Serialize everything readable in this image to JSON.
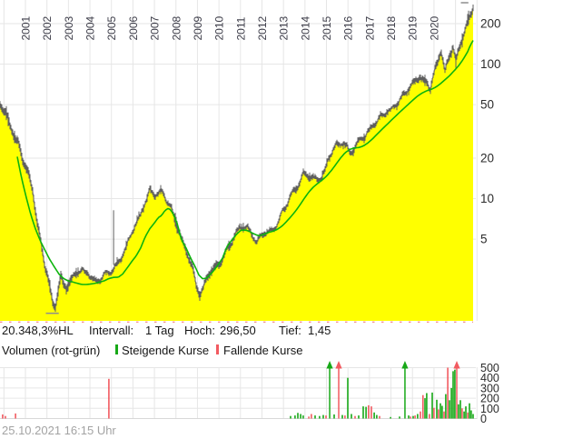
{
  "header": {
    "years": [
      "2001",
      "2002",
      "2003",
      "2004",
      "2005",
      "2006",
      "2007",
      "2008",
      "2009",
      "2010",
      "2011",
      "2012",
      "2013",
      "2014",
      "2015",
      "2016",
      "2017",
      "2018",
      "2019",
      "2020"
    ]
  },
  "stats": {
    "change": "20.348,3%HL",
    "interval_label": "Intervall:",
    "interval_value": "1 Tag",
    "high_label": "Hoch:",
    "high_value": "296,50",
    "low_label": "Tief:",
    "low_value": "1,45"
  },
  "legend": {
    "volume_label": "Volumen (rot-grün)",
    "rising_label": "Steigende Kurse",
    "falling_label": "Fallende Kurse"
  },
  "timestamp": "25.10.2021 16:15 Uhr",
  "colors": {
    "area_fill": "#ffff00",
    "price_line": "#5f5f5f",
    "ma_line": "#0db40d",
    "volume_up": "#17a817",
    "volume_down": "#f25a60",
    "grid": "#e6e6e6",
    "axis_text": "#2b2b2b",
    "year_text": "#3c3c48",
    "bottom_dash": "#ef6a6a",
    "marker_tick": "#8e8e8e"
  },
  "chart_data": {
    "type": "line",
    "subtype": "daily price area chart with moving average and volume pane",
    "y_scale": "log",
    "title": "",
    "xlabel": "",
    "ylabel": "",
    "x_range_years": [
      1999.8,
      2021.85
    ],
    "y_ticks": [
      200,
      100,
      50,
      20,
      10,
      5
    ],
    "price_series": {
      "name": "Kurs",
      "points": [
        [
          1999.82,
          52
        ],
        [
          1999.99,
          45
        ],
        [
          2000.16,
          39
        ],
        [
          2000.32,
          33
        ],
        [
          2000.49,
          28.5
        ],
        [
          2000.66,
          26
        ],
        [
          2000.83,
          21
        ],
        [
          2001.0,
          17.5
        ],
        [
          2001.17,
          14.5
        ],
        [
          2001.34,
          11
        ],
        [
          2001.51,
          6.8
        ],
        [
          2001.68,
          4.8
        ],
        [
          2001.84,
          3.6
        ],
        [
          2002.01,
          2.8
        ],
        [
          2002.14,
          2.1
        ],
        [
          2002.27,
          1.6
        ],
        [
          2002.39,
          1.5
        ],
        [
          2002.52,
          2.0
        ],
        [
          2002.65,
          2.5
        ],
        [
          2002.77,
          2.2
        ],
        [
          2002.9,
          2.1
        ],
        [
          2003.03,
          2.4
        ],
        [
          2003.2,
          2.6
        ],
        [
          2003.41,
          2.95
        ],
        [
          2003.62,
          2.9
        ],
        [
          2003.79,
          2.7
        ],
        [
          2003.96,
          2.75
        ],
        [
          2004.17,
          2.5
        ],
        [
          2004.38,
          2.5
        ],
        [
          2004.59,
          2.65
        ],
        [
          2004.8,
          2.7
        ],
        [
          2004.97,
          2.75
        ],
        [
          2005.18,
          3.1
        ],
        [
          2005.39,
          3.5
        ],
        [
          2005.6,
          4.2
        ],
        [
          2005.77,
          4.7
        ],
        [
          2005.94,
          5.4
        ],
        [
          2006.15,
          6.3
        ],
        [
          2006.36,
          7.5
        ],
        [
          2006.57,
          9.5
        ],
        [
          2006.79,
          11.8
        ],
        [
          2006.91,
          11.2
        ],
        [
          2007.08,
          10.5
        ],
        [
          2007.25,
          11.0
        ],
        [
          2007.42,
          10.6
        ],
        [
          2007.59,
          9.6
        ],
        [
          2007.76,
          8.8
        ],
        [
          2007.93,
          7.2
        ],
        [
          2008.09,
          6.0
        ],
        [
          2008.26,
          4.8
        ],
        [
          2008.43,
          4.2
        ],
        [
          2008.6,
          3.6
        ],
        [
          2008.77,
          3.1
        ],
        [
          2008.94,
          2.4
        ],
        [
          2009.11,
          2.0
        ],
        [
          2009.28,
          2.2
        ],
        [
          2009.45,
          2.6
        ],
        [
          2009.61,
          2.9
        ],
        [
          2009.78,
          3.1
        ],
        [
          2009.95,
          3.3
        ],
        [
          2010.12,
          3.6
        ],
        [
          2010.29,
          4.0
        ],
        [
          2010.46,
          4.4
        ],
        [
          2010.63,
          4.9
        ],
        [
          2010.8,
          5.4
        ],
        [
          2010.97,
          6.0
        ],
        [
          2011.14,
          6.3
        ],
        [
          2011.3,
          6.1
        ],
        [
          2011.47,
          5.6
        ],
        [
          2011.64,
          5.0
        ],
        [
          2011.77,
          4.6
        ],
        [
          2011.9,
          5.1
        ],
        [
          2012.06,
          5.5
        ],
        [
          2012.23,
          5.7
        ],
        [
          2012.4,
          5.8
        ],
        [
          2012.57,
          6.1
        ],
        [
          2012.74,
          6.5
        ],
        [
          2012.91,
          7.3
        ],
        [
          2013.08,
          8.4
        ],
        [
          2013.25,
          9.8
        ],
        [
          2013.42,
          11.4
        ],
        [
          2013.58,
          12.0
        ],
        [
          2013.75,
          12.8
        ],
        [
          2013.92,
          15.0
        ],
        [
          2014.09,
          14.6
        ],
        [
          2014.26,
          14.1
        ],
        [
          2014.43,
          13.9
        ],
        [
          2014.6,
          14.2
        ],
        [
          2014.77,
          14.6
        ],
        [
          2014.94,
          16.3
        ],
        [
          2015.1,
          19.2
        ],
        [
          2015.27,
          22.0
        ],
        [
          2015.44,
          23.8
        ],
        [
          2015.61,
          25.0
        ],
        [
          2015.78,
          26.0
        ],
        [
          2015.95,
          24.3
        ],
        [
          2016.12,
          21.6
        ],
        [
          2016.29,
          23.0
        ],
        [
          2016.46,
          25.6
        ],
        [
          2016.62,
          27.6
        ],
        [
          2016.79,
          29.2
        ],
        [
          2016.96,
          32.5
        ],
        [
          2017.13,
          36.0
        ],
        [
          2017.3,
          37.8
        ],
        [
          2017.47,
          39.8
        ],
        [
          2017.64,
          42.3
        ],
        [
          2017.81,
          45.8
        ],
        [
          2017.98,
          46.5
        ],
        [
          2018.15,
          49.8
        ],
        [
          2018.31,
          51.8
        ],
        [
          2018.48,
          54.8
        ],
        [
          2018.65,
          58.3
        ],
        [
          2018.82,
          62.8
        ],
        [
          2018.99,
          69.5
        ],
        [
          2019.16,
          78.0
        ],
        [
          2019.33,
          84.3
        ],
        [
          2019.5,
          76.5
        ],
        [
          2019.67,
          72.5
        ],
        [
          2019.83,
          63.5
        ],
        [
          2020.0,
          83.0
        ],
        [
          2020.13,
          100
        ],
        [
          2020.26,
          118
        ],
        [
          2020.34,
          129
        ],
        [
          2020.43,
          105
        ],
        [
          2020.51,
          88
        ],
        [
          2020.64,
          106
        ],
        [
          2020.76,
          120
        ],
        [
          2020.89,
          132
        ],
        [
          2021.02,
          101
        ],
        [
          2021.14,
          124
        ],
        [
          2021.27,
          150
        ],
        [
          2021.4,
          172
        ],
        [
          2021.52,
          196
        ],
        [
          2021.65,
          225
        ],
        [
          2021.78,
          258
        ],
        [
          2021.82,
          270
        ]
      ]
    },
    "ma_series": {
      "name": "gleitender Durchschnitt",
      "points": [
        [
          2000.62,
          20.5
        ],
        [
          2000.83,
          14
        ],
        [
          2001.04,
          10.2
        ],
        [
          2001.25,
          7.6
        ],
        [
          2001.46,
          6.0
        ],
        [
          2001.68,
          4.9
        ],
        [
          2001.89,
          4.2
        ],
        [
          2002.1,
          3.6
        ],
        [
          2002.35,
          3.1
        ],
        [
          2002.56,
          2.75
        ],
        [
          2002.77,
          2.55
        ],
        [
          2002.98,
          2.45
        ],
        [
          2003.2,
          2.4
        ],
        [
          2003.41,
          2.35
        ],
        [
          2003.62,
          2.3
        ],
        [
          2003.83,
          2.3
        ],
        [
          2004.04,
          2.32
        ],
        [
          2004.25,
          2.35
        ],
        [
          2004.46,
          2.4
        ],
        [
          2004.67,
          2.45
        ],
        [
          2004.89,
          2.55
        ],
        [
          2005.1,
          2.6
        ],
        [
          2005.31,
          2.6
        ],
        [
          2005.52,
          2.75
        ],
        [
          2005.73,
          3.05
        ],
        [
          2005.94,
          3.4
        ],
        [
          2006.15,
          3.75
        ],
        [
          2006.36,
          4.3
        ],
        [
          2006.57,
          5.2
        ],
        [
          2006.79,
          6.0
        ],
        [
          2007.0,
          6.6
        ],
        [
          2007.17,
          7.2
        ],
        [
          2007.33,
          7.5
        ],
        [
          2007.5,
          8.2
        ],
        [
          2007.67,
          8.5
        ],
        [
          2007.84,
          7.9
        ],
        [
          2008.05,
          6.6
        ],
        [
          2008.26,
          4.9
        ],
        [
          2008.47,
          4.3
        ],
        [
          2008.69,
          3.6
        ],
        [
          2008.9,
          3.1
        ],
        [
          2009.07,
          2.7
        ],
        [
          2009.24,
          2.54
        ],
        [
          2009.4,
          2.56
        ],
        [
          2009.57,
          2.7
        ],
        [
          2009.74,
          2.9
        ],
        [
          2009.95,
          3.2
        ],
        [
          2010.16,
          3.6
        ],
        [
          2010.37,
          4.4
        ],
        [
          2010.59,
          4.9
        ],
        [
          2010.8,
          5.4
        ],
        [
          2011.01,
          5.8
        ],
        [
          2011.22,
          5.85
        ],
        [
          2011.43,
          5.7
        ],
        [
          2011.64,
          5.45
        ],
        [
          2011.85,
          5.3
        ],
        [
          2012.06,
          5.4
        ],
        [
          2012.28,
          5.6
        ],
        [
          2012.49,
          5.7
        ],
        [
          2012.7,
          5.9
        ],
        [
          2012.91,
          6.2
        ],
        [
          2013.12,
          6.7
        ],
        [
          2013.33,
          7.3
        ],
        [
          2013.54,
          8.0
        ],
        [
          2013.75,
          8.9
        ],
        [
          2013.96,
          10.0
        ],
        [
          2014.18,
          11.2
        ],
        [
          2014.39,
          12.2
        ],
        [
          2014.6,
          13.0
        ],
        [
          2014.81,
          13.8
        ],
        [
          2015.02,
          14.8
        ],
        [
          2015.23,
          16.2
        ],
        [
          2015.44,
          18.0
        ],
        [
          2015.65,
          20.0
        ],
        [
          2015.86,
          21.9
        ],
        [
          2016.08,
          23.2
        ],
        [
          2016.29,
          23.8
        ],
        [
          2016.5,
          24.0
        ],
        [
          2016.71,
          24.6
        ],
        [
          2016.92,
          25.9
        ],
        [
          2017.13,
          27.7
        ],
        [
          2017.34,
          30.0
        ],
        [
          2017.55,
          32.4
        ],
        [
          2017.77,
          35.0
        ],
        [
          2017.98,
          37.8
        ],
        [
          2018.19,
          40.7
        ],
        [
          2018.4,
          43.8
        ],
        [
          2018.61,
          47.0
        ],
        [
          2018.82,
          50.5
        ],
        [
          2019.03,
          54.2
        ],
        [
          2019.24,
          58
        ],
        [
          2019.45,
          61
        ],
        [
          2019.67,
          63.5
        ],
        [
          2019.88,
          65
        ],
        [
          2020.09,
          67.5
        ],
        [
          2020.3,
          71.5
        ],
        [
          2020.51,
          76.5
        ],
        [
          2020.72,
          82
        ],
        [
          2020.93,
          89
        ],
        [
          2021.14,
          97
        ],
        [
          2021.35,
          108
        ],
        [
          2021.57,
          124
        ],
        [
          2021.69,
          138
        ],
        [
          2021.82,
          150
        ]
      ]
    },
    "outlier_spikes": [
      [
        2005.1,
        8.2
      ]
    ],
    "high_marker": {
      "value": 296.5,
      "year_start": 2021.25,
      "year_end": 2021.6
    },
    "low_marker": {
      "value": 1.45,
      "year_start": 2001.95,
      "year_end": 2002.55
    },
    "volume": {
      "y_ticks": [
        500,
        400,
        300,
        200,
        100,
        0
      ],
      "bars": [
        [
          1999.94,
          40,
          "r"
        ],
        [
          2000.07,
          25,
          "r"
        ],
        [
          2000.54,
          50,
          "r"
        ],
        [
          2004.88,
          390,
          "r"
        ],
        [
          2013.33,
          25,
          "g"
        ],
        [
          2013.54,
          30,
          "g"
        ],
        [
          2013.67,
          55,
          "g"
        ],
        [
          2013.8,
          45,
          "g"
        ],
        [
          2013.92,
          30,
          "g"
        ],
        [
          2014.18,
          20,
          "r"
        ],
        [
          2014.3,
          45,
          "r"
        ],
        [
          2014.47,
          30,
          "g"
        ],
        [
          2014.68,
          25,
          "g"
        ],
        [
          2014.85,
          35,
          "g"
        ],
        [
          2014.98,
          30,
          "r"
        ],
        [
          2015.36,
          40,
          "g"
        ],
        [
          2015.74,
          35,
          "g"
        ],
        [
          2015.86,
          30,
          "r"
        ],
        [
          2015.99,
          400,
          "g"
        ],
        [
          2016.16,
          45,
          "g"
        ],
        [
          2016.33,
          25,
          "r"
        ],
        [
          2016.5,
          30,
          "g"
        ],
        [
          2016.71,
          120,
          "g"
        ],
        [
          2016.84,
          115,
          "g"
        ],
        [
          2016.96,
          130,
          "r"
        ],
        [
          2017.09,
          120,
          "r"
        ],
        [
          2017.22,
          60,
          "g"
        ],
        [
          2017.34,
          35,
          "g"
        ],
        [
          2017.47,
          25,
          "r"
        ],
        [
          2017.98,
          15,
          "g"
        ],
        [
          2018.4,
          20,
          "g"
        ],
        [
          2018.82,
          30,
          "g"
        ],
        [
          2018.91,
          20,
          "r"
        ],
        [
          2019.03,
          25,
          "g"
        ],
        [
          2019.12,
          30,
          "r"
        ],
        [
          2019.24,
          45,
          "g"
        ],
        [
          2019.37,
          70,
          "r"
        ],
        [
          2019.49,
          230,
          "r"
        ],
        [
          2019.58,
          200,
          "g"
        ],
        [
          2019.66,
          250,
          "g"
        ],
        [
          2019.79,
          45,
          "r"
        ],
        [
          2019.92,
          255,
          "g"
        ],
        [
          2020.0,
          105,
          "r"
        ],
        [
          2020.13,
          185,
          "g"
        ],
        [
          2020.21,
          90,
          "r"
        ],
        [
          2020.3,
          150,
          "g"
        ],
        [
          2020.38,
          125,
          "g"
        ],
        [
          2020.47,
          70,
          "r"
        ],
        [
          2020.55,
          240,
          "g"
        ],
        [
          2020.64,
          500,
          "r"
        ],
        [
          2020.72,
          180,
          "g"
        ],
        [
          2020.81,
          300,
          "g"
        ],
        [
          2020.89,
          465,
          "g"
        ],
        [
          2020.97,
          480,
          "g"
        ],
        [
          2021.14,
          140,
          "g"
        ],
        [
          2021.23,
          180,
          "g"
        ],
        [
          2021.31,
          100,
          "r"
        ],
        [
          2021.4,
          70,
          "g"
        ],
        [
          2021.48,
          120,
          "g"
        ],
        [
          2021.57,
          60,
          "r"
        ],
        [
          2021.65,
          150,
          "g"
        ],
        [
          2021.73,
          80,
          "g"
        ],
        [
          2021.82,
          45,
          "g"
        ]
      ],
      "arrows": [
        [
          2015.15,
          "g"
        ],
        [
          2015.57,
          "r"
        ],
        [
          2018.65,
          "g"
        ],
        [
          2021.06,
          "r"
        ]
      ]
    }
  }
}
